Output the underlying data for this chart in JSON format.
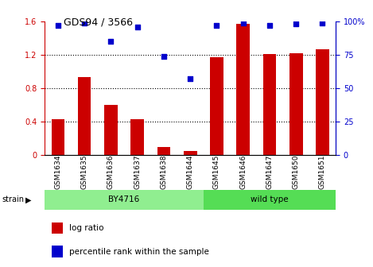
{
  "title": "GDS94 / 3566",
  "samples": [
    "GSM1634",
    "GSM1635",
    "GSM1636",
    "GSM1637",
    "GSM1638",
    "GSM1644",
    "GSM1645",
    "GSM1646",
    "GSM1647",
    "GSM1650",
    "GSM1651"
  ],
  "log_ratio": [
    0.43,
    0.93,
    0.6,
    0.43,
    0.09,
    0.05,
    1.17,
    1.57,
    1.21,
    1.22,
    1.27
  ],
  "percentile": [
    97,
    99,
    85,
    96,
    74,
    57,
    97,
    99,
    97,
    98,
    99
  ],
  "strains": [
    {
      "label": "BY4716",
      "start": 0,
      "end": 6,
      "color": "#90EE90"
    },
    {
      "label": "wild type",
      "start": 6,
      "end": 11,
      "color": "#55DD55"
    }
  ],
  "bar_color": "#CC0000",
  "dot_color": "#0000CC",
  "ylim_left": [
    0,
    1.6
  ],
  "ylim_right": [
    0,
    100
  ],
  "yticks_left": [
    0,
    0.4,
    0.8,
    1.2,
    1.6
  ],
  "yticks_right": [
    0,
    25,
    50,
    75,
    100
  ],
  "ytick_labels_left": [
    "0",
    "0.4",
    "0.8",
    "1.2",
    "1.6"
  ],
  "ytick_labels_right": [
    "0",
    "25",
    "50",
    "75",
    "100%"
  ],
  "left_tick_color": "#CC0000",
  "right_tick_color": "#0000CC",
  "legend_items": [
    {
      "label": "log ratio",
      "color": "#CC0000"
    },
    {
      "label": "percentile rank within the sample",
      "color": "#0000CC"
    }
  ]
}
